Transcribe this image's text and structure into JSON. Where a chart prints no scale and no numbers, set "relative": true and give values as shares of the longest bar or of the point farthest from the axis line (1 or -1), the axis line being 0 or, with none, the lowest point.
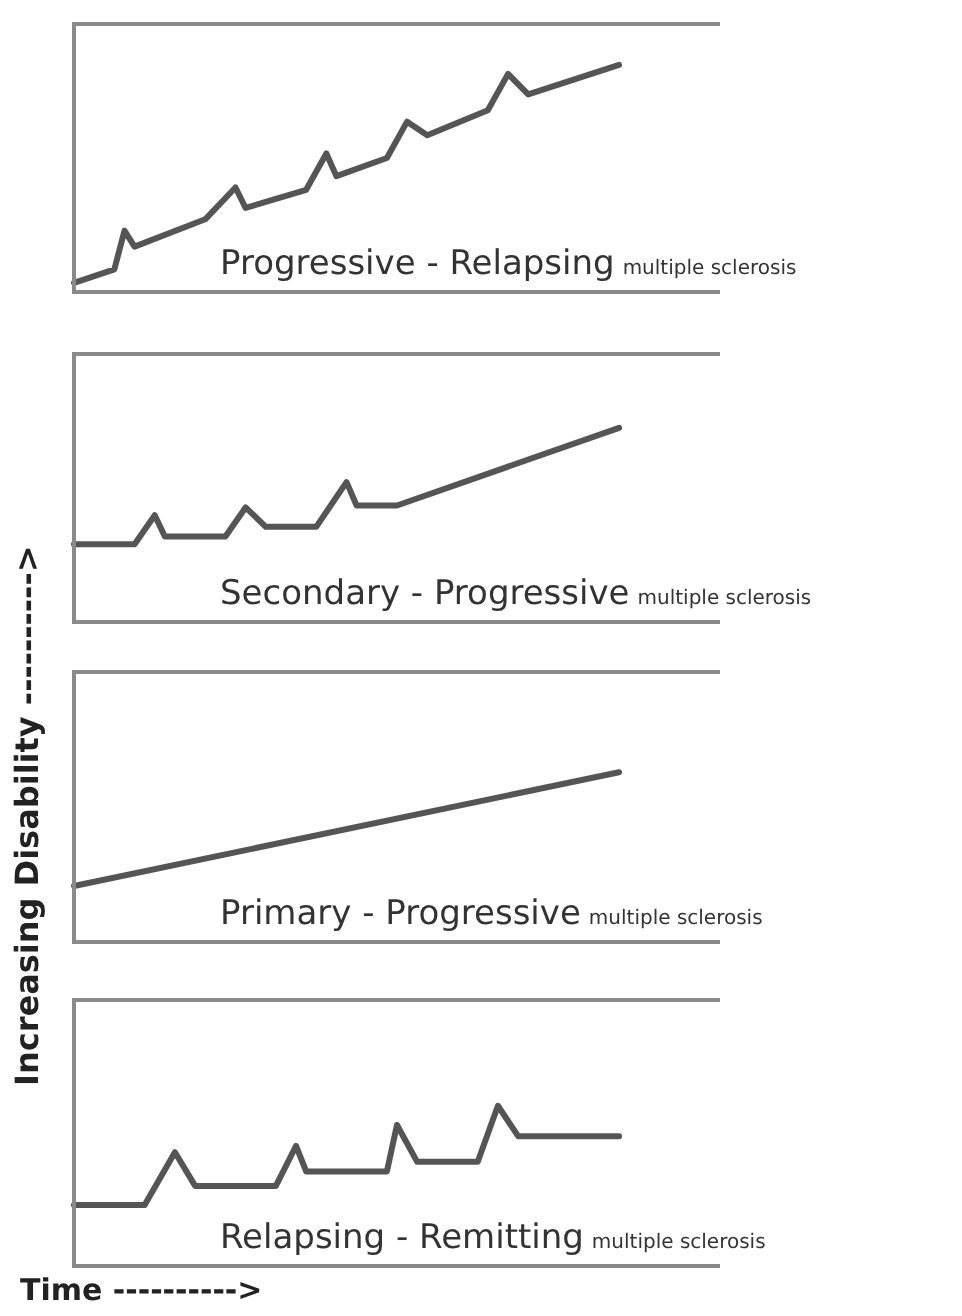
{
  "chart_data": [
    {
      "type": "line",
      "title": "Progressive - Relapsing",
      "subtitle": "multiple sclerosis",
      "relative": true,
      "marker": "none",
      "categories": [
        null,
        null,
        null,
        null,
        null,
        null,
        null,
        null,
        null,
        null,
        null,
        null,
        null,
        null,
        null,
        null,
        null,
        null,
        null,
        null,
        null,
        null,
        null,
        null,
        null,
        null,
        null,
        null,
        null,
        null,
        null,
        null,
        null,
        null,
        null,
        null,
        null,
        null,
        null,
        null,
        null,
        null,
        null,
        null,
        null,
        null,
        null,
        null,
        null,
        null,
        null,
        null,
        null,
        null,
        null,
        null,
        null,
        null,
        null,
        null,
        null,
        null,
        null,
        null,
        null
      ],
      "series": [
        {
          "color": "#555555",
          "values": [
            0.04,
            null,
            null,
            null,
            0.1,
            0.27,
            0.2,
            null,
            null,
            null,
            null,
            null,
            null,
            0.32,
            null,
            null,
            0.46,
            0.37,
            null,
            null,
            null,
            null,
            null,
            0.45,
            null,
            0.61,
            0.51,
            null,
            null,
            null,
            null,
            0.59,
            null,
            0.75,
            null,
            0.69,
            null,
            null,
            null,
            null,
            null,
            0.8,
            null,
            0.96,
            null,
            0.87,
            null,
            null,
            null,
            null,
            null,
            null,
            null,
            null,
            1,
            null,
            null,
            null,
            null,
            null,
            null,
            null,
            null,
            null,
            null
          ]
        }
      ]
    },
    {
      "type": "line",
      "title": "Secondary - Progressive",
      "subtitle": "multiple sclerosis",
      "relative": true,
      "marker": "none",
      "categories": [
        null,
        null,
        null,
        null,
        null,
        null,
        null,
        null,
        null,
        null,
        null,
        null,
        null,
        null,
        null,
        null,
        null,
        null,
        null,
        null,
        null,
        null,
        null,
        null,
        null,
        null,
        null,
        null,
        null,
        null,
        null,
        null,
        null,
        null,
        null,
        null,
        null,
        null,
        null,
        null,
        null,
        null,
        null,
        null,
        null,
        null,
        null,
        null,
        null,
        null,
        null,
        null,
        null,
        null,
        null,
        null,
        null,
        null,
        null,
        null,
        null,
        null,
        null,
        null,
        null
      ],
      "series": [
        {
          "color": "#555555",
          "values": [
            0.4,
            null,
            null,
            null,
            null,
            null,
            0.4,
            null,
            0.55,
            0.44,
            null,
            null,
            null,
            null,
            null,
            0.44,
            null,
            0.59,
            null,
            0.49,
            null,
            null,
            null,
            null,
            0.49,
            null,
            null,
            0.72,
            0.6,
            null,
            null,
            null,
            0.6,
            null,
            null,
            null,
            null,
            null,
            null,
            null,
            null,
            null,
            null,
            null,
            null,
            null,
            null,
            null,
            null,
            null,
            null,
            null,
            null,
            null,
            1,
            null,
            null,
            null,
            null,
            null,
            null,
            null,
            null,
            null,
            null
          ]
        }
      ]
    },
    {
      "type": "line",
      "title": "Primary - Progressive",
      "subtitle": "multiple sclerosis",
      "relative": true,
      "marker": "none",
      "categories": [
        null,
        null,
        null,
        null,
        null,
        null,
        null,
        null,
        null,
        null,
        null,
        null,
        null,
        null,
        null,
        null,
        null,
        null,
        null,
        null,
        null,
        null,
        null,
        null,
        null,
        null,
        null,
        null,
        null,
        null,
        null,
        null,
        null,
        null,
        null,
        null,
        null,
        null,
        null,
        null,
        null,
        null,
        null,
        null,
        null,
        null,
        null,
        null,
        null,
        null,
        null,
        null,
        null,
        null,
        null,
        null,
        null,
        null,
        null,
        null,
        null,
        null,
        null,
        null,
        null
      ],
      "series": [
        {
          "color": "#555555",
          "values": [
            0.33,
            null,
            null,
            null,
            null,
            null,
            null,
            null,
            null,
            null,
            null,
            null,
            null,
            null,
            null,
            null,
            null,
            null,
            null,
            null,
            null,
            null,
            null,
            null,
            null,
            null,
            null,
            null,
            null,
            null,
            null,
            null,
            null,
            null,
            null,
            null,
            null,
            null,
            null,
            null,
            null,
            null,
            null,
            null,
            null,
            null,
            null,
            null,
            null,
            null,
            null,
            null,
            null,
            null,
            1,
            null,
            null,
            null,
            null,
            null,
            null,
            null,
            null,
            null,
            null
          ]
        }
      ]
    },
    {
      "type": "line",
      "title": "Relapsing - Remitting",
      "subtitle": "multiple sclerosis",
      "xlabel": "Time ---------->",
      "ylabel": "Increasing Disability ---------->",
      "relative": true,
      "marker": "none",
      "categories": [
        null,
        null,
        null,
        null,
        null,
        null,
        null,
        null,
        null,
        null,
        null,
        null,
        null,
        null,
        null,
        null,
        null,
        null,
        null,
        null,
        null,
        null,
        null,
        null,
        null,
        null,
        null,
        null,
        null,
        null,
        null,
        null,
        null,
        null,
        null,
        null,
        null,
        null,
        null,
        null,
        null,
        null,
        null,
        null,
        null,
        null,
        null,
        null,
        null,
        null,
        null,
        null,
        null,
        null,
        null,
        null,
        null,
        null,
        null,
        null,
        null,
        null,
        null,
        null,
        null
      ],
      "series": [
        {
          "color": "#555555",
          "values": [
            0.38,
            null,
            null,
            null,
            null,
            null,
            null,
            0.38,
            null,
            null,
            0.71,
            null,
            0.5,
            null,
            null,
            null,
            null,
            null,
            null,
            null,
            0.5,
            null,
            0.75,
            0.59,
            null,
            null,
            null,
            null,
            null,
            null,
            null,
            0.59,
            0.88,
            null,
            0.65,
            null,
            null,
            null,
            null,
            null,
            0.65,
            null,
            1,
            null,
            0.81,
            null,
            null,
            null,
            null,
            null,
            null,
            null,
            null,
            null,
            0.81,
            null,
            null,
            null,
            null,
            null,
            null,
            null,
            null,
            null,
            null
          ]
        }
      ]
    }
  ]
}
